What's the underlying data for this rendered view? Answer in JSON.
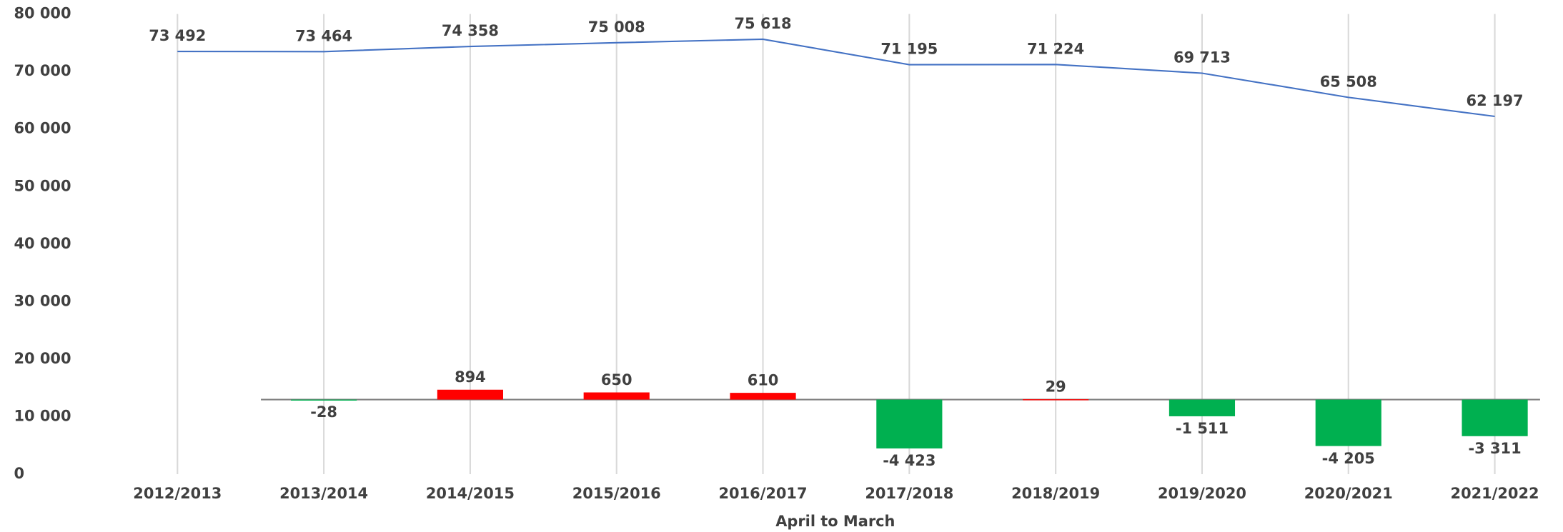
{
  "chart_data": {
    "type": "line",
    "x_label": "April to March",
    "categories": [
      "2012/2013",
      "2013/2014",
      "2014/2015",
      "2015/2016",
      "2016/2017",
      "2017/2018",
      "2018/2019",
      "2019/2020",
      "2020/2021",
      "2021/2022"
    ],
    "ylim": [
      0,
      80000
    ],
    "yticks": [
      0,
      {
        "value": 10000,
        "label": "10 000"
      },
      {
        "value": 20000,
        "label": "20 000"
      },
      {
        "value": 30000,
        "label": "30 000"
      },
      {
        "value": 40000,
        "label": "40 000"
      },
      {
        "value": 50000,
        "label": "50 000"
      },
      {
        "value": 60000,
        "label": "60 000"
      },
      {
        "value": 70000,
        "label": "70 000"
      },
      {
        "value": 80000,
        "label": "80 000"
      }
    ],
    "y2lim": [
      -6750,
      34900
    ],
    "series": [
      {
        "type": "line",
        "color": "#4472c4",
        "values": [
          73492,
          73464,
          74358,
          75008,
          75618,
          71195,
          71224,
          69713,
          65508,
          62197
        ],
        "value_labels": [
          "73 492",
          "73 464",
          "74 358",
          "75 008",
          "75 618",
          "71 195",
          "71 224",
          "69 713",
          "65 508",
          "62 197"
        ]
      },
      {
        "type": "bar",
        "axis": "y2",
        "positive_color": "#ff0000",
        "negative_color": "#00b050",
        "values": [
          null,
          -28,
          894,
          650,
          610,
          -4423,
          29,
          -1511,
          -4205,
          -3311
        ],
        "value_labels": [
          null,
          "-28",
          "894",
          "650",
          "610",
          "-4 423",
          "29",
          "-1 511",
          "-4 205",
          "-3 311"
        ]
      }
    ]
  }
}
